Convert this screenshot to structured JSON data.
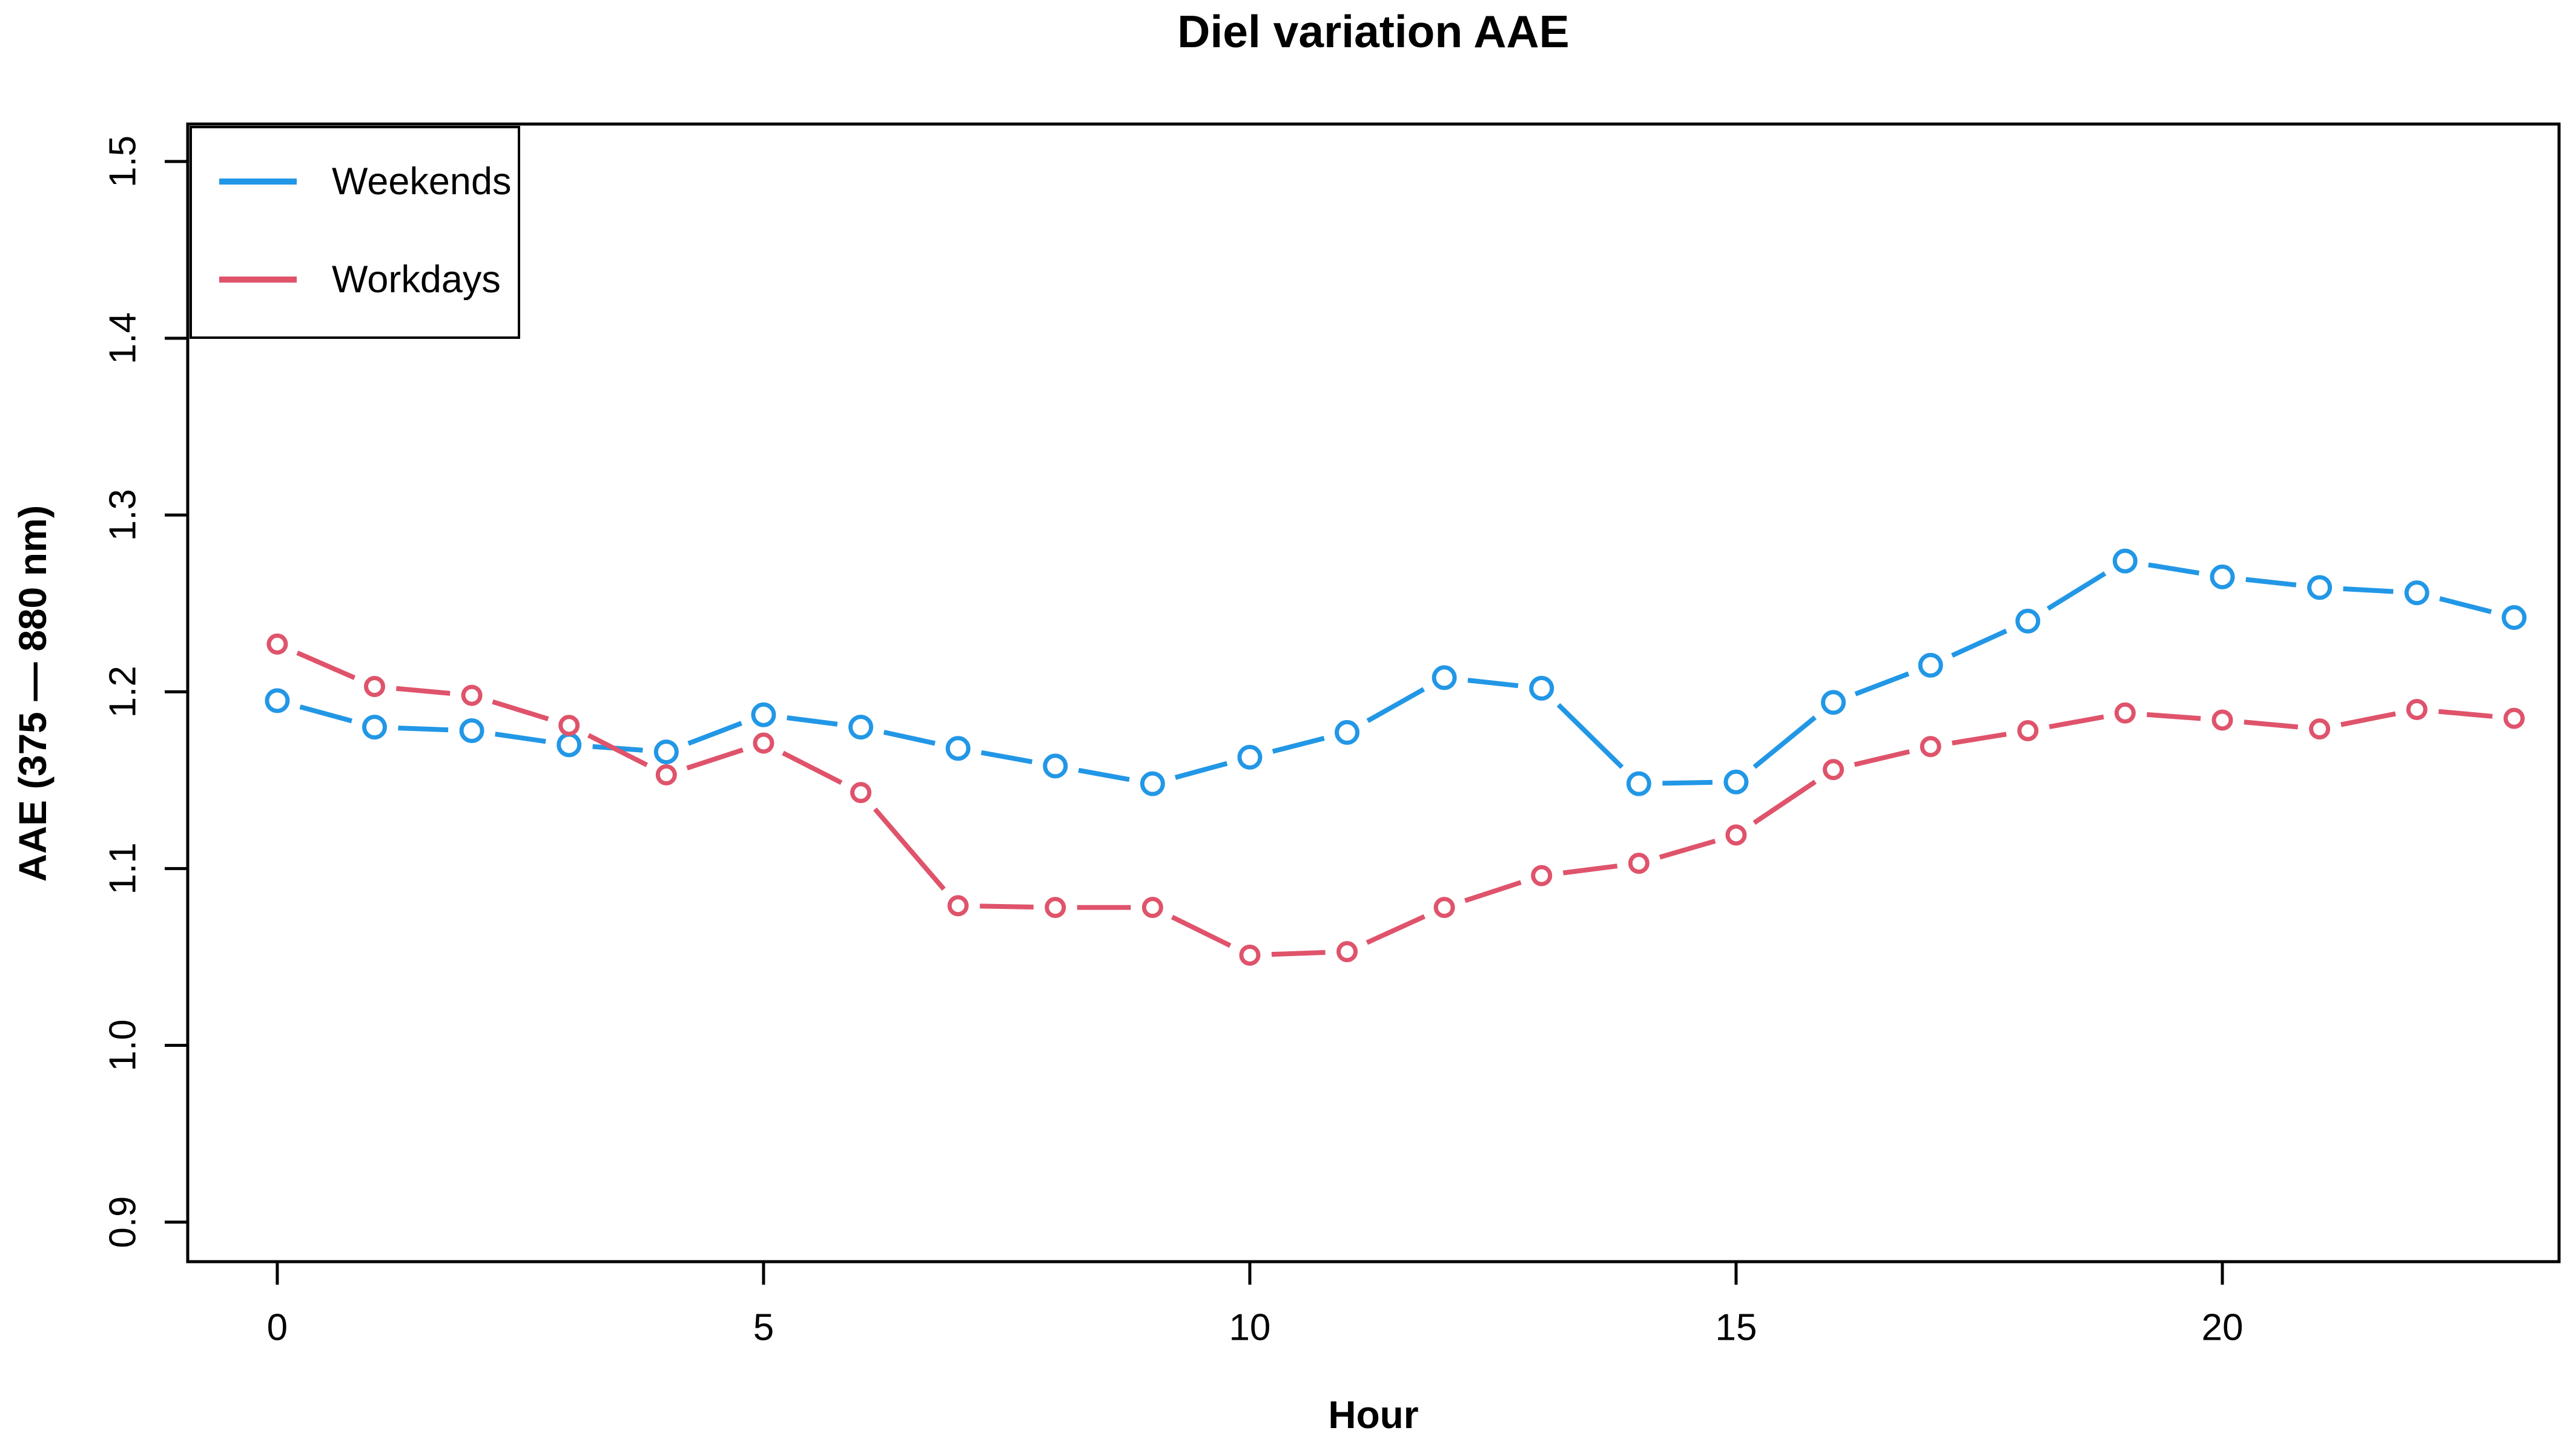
{
  "chart_data": {
    "type": "line",
    "title": "Diel variation AAE",
    "xlabel": "Hour",
    "ylabel": "AAE (375 — 880 nm)",
    "grid": false,
    "background": "#ffffff",
    "axis_color": "#000000",
    "xlim": [
      -0.921,
      23.462
    ],
    "ylim": [
      0.8776,
      1.5212
    ],
    "xticks": [
      0,
      5,
      10,
      15,
      20
    ],
    "xtick_labels": [
      "0",
      "5",
      "10",
      "15",
      "20"
    ],
    "yticks": [
      0.9,
      1.0,
      1.1,
      1.2,
      1.3,
      1.4,
      1.5
    ],
    "ytick_labels": [
      "0.9",
      "1.0",
      "1.1",
      "1.2",
      "1.3",
      "1.4",
      "1.5"
    ],
    "x": [
      0,
      1,
      2,
      3,
      4,
      5,
      6,
      7,
      8,
      9,
      10,
      11,
      12,
      13,
      14,
      15,
      16,
      17,
      18,
      19,
      20,
      21,
      22,
      23
    ],
    "series": [
      {
        "name": "Weekends",
        "color": "#2297E6",
        "marker": "open-circle",
        "values": [
          1.195,
          1.18,
          1.178,
          1.17,
          1.166,
          1.187,
          1.18,
          1.168,
          1.158,
          1.148,
          1.163,
          1.177,
          1.208,
          1.202,
          1.148,
          1.149,
          1.194,
          1.215,
          1.24,
          1.274,
          1.265,
          1.259,
          1.256,
          1.242
        ]
      },
      {
        "name": "Workdays",
        "color": "#DF536B",
        "marker": "open-circle",
        "values": [
          1.227,
          1.203,
          1.198,
          1.181,
          1.153,
          1.171,
          1.143,
          1.079,
          1.078,
          1.078,
          1.051,
          1.053,
          1.078,
          1.096,
          1.103,
          1.119,
          1.156,
          1.169,
          1.178,
          1.188,
          1.184,
          1.179,
          1.19,
          1.185
        ]
      }
    ],
    "legend": {
      "position": "top-left",
      "border_color": "#000000",
      "entries": [
        "Weekends",
        "Workdays"
      ]
    }
  }
}
